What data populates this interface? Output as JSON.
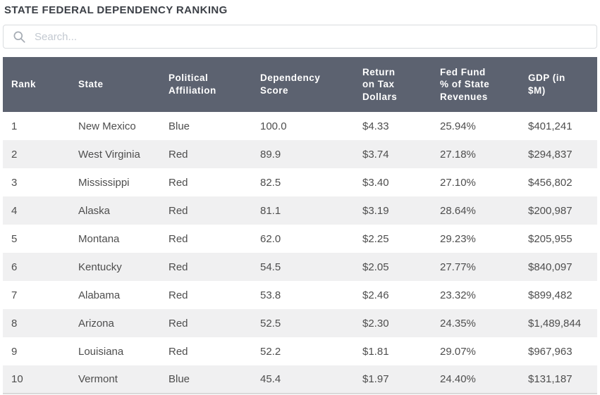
{
  "page": {
    "title": "STATE FEDERAL DEPENDENCY RANKING"
  },
  "search": {
    "placeholder": "Search...",
    "value": "",
    "icon": "search-icon"
  },
  "colors": {
    "header_bg": "#5c6270",
    "header_text": "#ffffff",
    "row_alt_bg": "#f0f0f1",
    "body_text": "#4e4e4e",
    "title_text": "#3c4047"
  },
  "table": {
    "columns": [
      {
        "id": "rank",
        "label": "Rank"
      },
      {
        "id": "state",
        "label": "State"
      },
      {
        "id": "affiliation",
        "label": "Political\nAffiliation"
      },
      {
        "id": "score",
        "label": "Dependency\nScore"
      },
      {
        "id": "return-on-tax",
        "label": "Return\non Tax\nDollars"
      },
      {
        "id": "fed-fund",
        "label": "Fed Fund\n% of State\nRevenues"
      },
      {
        "id": "gdp",
        "label": "GDP (in\n$M)"
      }
    ],
    "rows": [
      {
        "rank": "1",
        "state": "New Mexico",
        "affiliation": "Blue",
        "score": "100.0",
        "return_on_tax": "$4.33",
        "fed_fund_pct": "25.94%",
        "gdp": "$401,241"
      },
      {
        "rank": "2",
        "state": "West Virginia",
        "affiliation": "Red",
        "score": "89.9",
        "return_on_tax": "$3.74",
        "fed_fund_pct": "27.18%",
        "gdp": "$294,837"
      },
      {
        "rank": "3",
        "state": "Mississippi",
        "affiliation": "Red",
        "score": "82.5",
        "return_on_tax": "$3.40",
        "fed_fund_pct": "27.10%",
        "gdp": "$456,802"
      },
      {
        "rank": "4",
        "state": "Alaska",
        "affiliation": "Red",
        "score": "81.1",
        "return_on_tax": "$3.19",
        "fed_fund_pct": "28.64%",
        "gdp": "$200,987"
      },
      {
        "rank": "5",
        "state": "Montana",
        "affiliation": "Red",
        "score": "62.0",
        "return_on_tax": "$2.25",
        "fed_fund_pct": "29.23%",
        "gdp": "$205,955"
      },
      {
        "rank": "6",
        "state": "Kentucky",
        "affiliation": "Red",
        "score": "54.5",
        "return_on_tax": "$2.05",
        "fed_fund_pct": "27.77%",
        "gdp": "$840,097"
      },
      {
        "rank": "7",
        "state": "Alabama",
        "affiliation": "Red",
        "score": "53.8",
        "return_on_tax": "$2.46",
        "fed_fund_pct": "23.32%",
        "gdp": "$899,482"
      },
      {
        "rank": "8",
        "state": "Arizona",
        "affiliation": "Red",
        "score": "52.5",
        "return_on_tax": "$2.30",
        "fed_fund_pct": "24.35%",
        "gdp": "$1,489,844"
      },
      {
        "rank": "9",
        "state": "Louisiana",
        "affiliation": "Red",
        "score": "52.2",
        "return_on_tax": "$1.81",
        "fed_fund_pct": "29.07%",
        "gdp": "$967,963"
      },
      {
        "rank": "10",
        "state": "Vermont",
        "affiliation": "Blue",
        "score": "45.4",
        "return_on_tax": "$1.97",
        "fed_fund_pct": "24.40%",
        "gdp": "$131,187"
      }
    ]
  }
}
